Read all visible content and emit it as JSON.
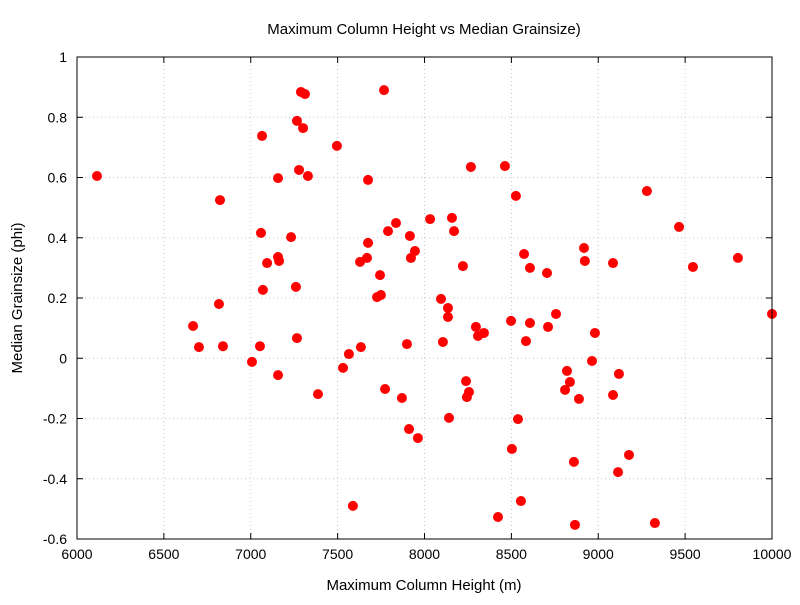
{
  "chart_data": {
    "type": "scatter",
    "title": "Maximum Column Height vs Median Grainsize)",
    "xlabel": "Maximum Column Height (m)",
    "ylabel": "Median Grainsize (phi)",
    "xlim": [
      6000,
      10000
    ],
    "ylim": [
      -0.6,
      1
    ],
    "xticks": [
      6000,
      6500,
      7000,
      7500,
      8000,
      8500,
      9000,
      9500,
      10000
    ],
    "yticks": [
      -0.6,
      -0.4,
      -0.2,
      0,
      0.2,
      0.4,
      0.6,
      0.8,
      1
    ],
    "grid": true,
    "marker_color": "#ff0000",
    "points": [
      [
        6115,
        0.605
      ],
      [
        6668,
        0.107
      ],
      [
        6702,
        0.037
      ],
      [
        6823,
        0.525
      ],
      [
        6817,
        0.18
      ],
      [
        6840,
        0.04
      ],
      [
        7007,
        -0.012
      ],
      [
        7053,
        0.04
      ],
      [
        7059,
        0.416
      ],
      [
        7065,
        0.738
      ],
      [
        7070,
        0.227
      ],
      [
        7094,
        0.316
      ],
      [
        7157,
        0.336
      ],
      [
        7163,
        0.323
      ],
      [
        7157,
        0.598
      ],
      [
        7157,
        -0.056
      ],
      [
        7232,
        0.402
      ],
      [
        7266,
        0.788
      ],
      [
        7260,
        0.237
      ],
      [
        7266,
        0.067
      ],
      [
        7278,
        0.625
      ],
      [
        7289,
        0.884
      ],
      [
        7312,
        0.877
      ],
      [
        7301,
        0.764
      ],
      [
        7329,
        0.605
      ],
      [
        7387,
        -0.119
      ],
      [
        7496,
        0.705
      ],
      [
        7531,
        -0.032
      ],
      [
        7565,
        0.014
      ],
      [
        7588,
        -0.49
      ],
      [
        7629,
        0.32
      ],
      [
        7634,
        0.037
      ],
      [
        7669,
        0.333
      ],
      [
        7675,
        0.383
      ],
      [
        7675,
        0.592
      ],
      [
        7727,
        0.203
      ],
      [
        7744,
        0.276
      ],
      [
        7749,
        0.21
      ],
      [
        7767,
        0.89
      ],
      [
        7773,
        -0.102
      ],
      [
        7790,
        0.422
      ],
      [
        7836,
        0.449
      ],
      [
        7870,
        -0.132
      ],
      [
        7899,
        0.047
      ],
      [
        7911,
        -0.235
      ],
      [
        7916,
        0.406
      ],
      [
        7922,
        0.333
      ],
      [
        7945,
        0.356
      ],
      [
        7962,
        -0.265
      ],
      [
        8032,
        0.462
      ],
      [
        8095,
        0.197
      ],
      [
        8106,
        0.054
      ],
      [
        8135,
        0.167
      ],
      [
        8135,
        0.137
      ],
      [
        8141,
        -0.198
      ],
      [
        8158,
        0.466
      ],
      [
        8170,
        0.422
      ],
      [
        8221,
        0.306
      ],
      [
        8239,
        -0.076
      ],
      [
        8244,
        -0.129
      ],
      [
        8256,
        -0.112
      ],
      [
        8267,
        0.635
      ],
      [
        8296,
        0.104
      ],
      [
        8308,
        0.074
      ],
      [
        8342,
        0.084
      ],
      [
        8423,
        -0.527
      ],
      [
        8463,
        0.638
      ],
      [
        8498,
        0.124
      ],
      [
        8503,
        -0.301
      ],
      [
        8526,
        0.539
      ],
      [
        8538,
        -0.202
      ],
      [
        8555,
        -0.474
      ],
      [
        8573,
        0.346
      ],
      [
        8584,
        0.057
      ],
      [
        8607,
        0.3
      ],
      [
        8607,
        0.117
      ],
      [
        8705,
        0.283
      ],
      [
        8711,
        0.104
      ],
      [
        8757,
        0.147
      ],
      [
        8809,
        -0.105
      ],
      [
        8820,
        -0.042
      ],
      [
        8837,
        -0.079
      ],
      [
        8860,
        -0.344
      ],
      [
        8866,
        -0.553
      ],
      [
        8889,
        -0.135
      ],
      [
        8918,
        0.366
      ],
      [
        8923,
        0.323
      ],
      [
        8964,
        -0.009
      ],
      [
        8981,
        0.084
      ],
      [
        9085,
        -0.122
      ],
      [
        9085,
        0.316
      ],
      [
        9114,
        -0.378
      ],
      [
        9119,
        -0.052
      ],
      [
        9177,
        -0.321
      ],
      [
        9280,
        0.555
      ],
      [
        9326,
        -0.547
      ],
      [
        9465,
        0.436
      ],
      [
        9545,
        0.303
      ],
      [
        9804,
        0.333
      ],
      [
        10000,
        0.147
      ]
    ]
  }
}
